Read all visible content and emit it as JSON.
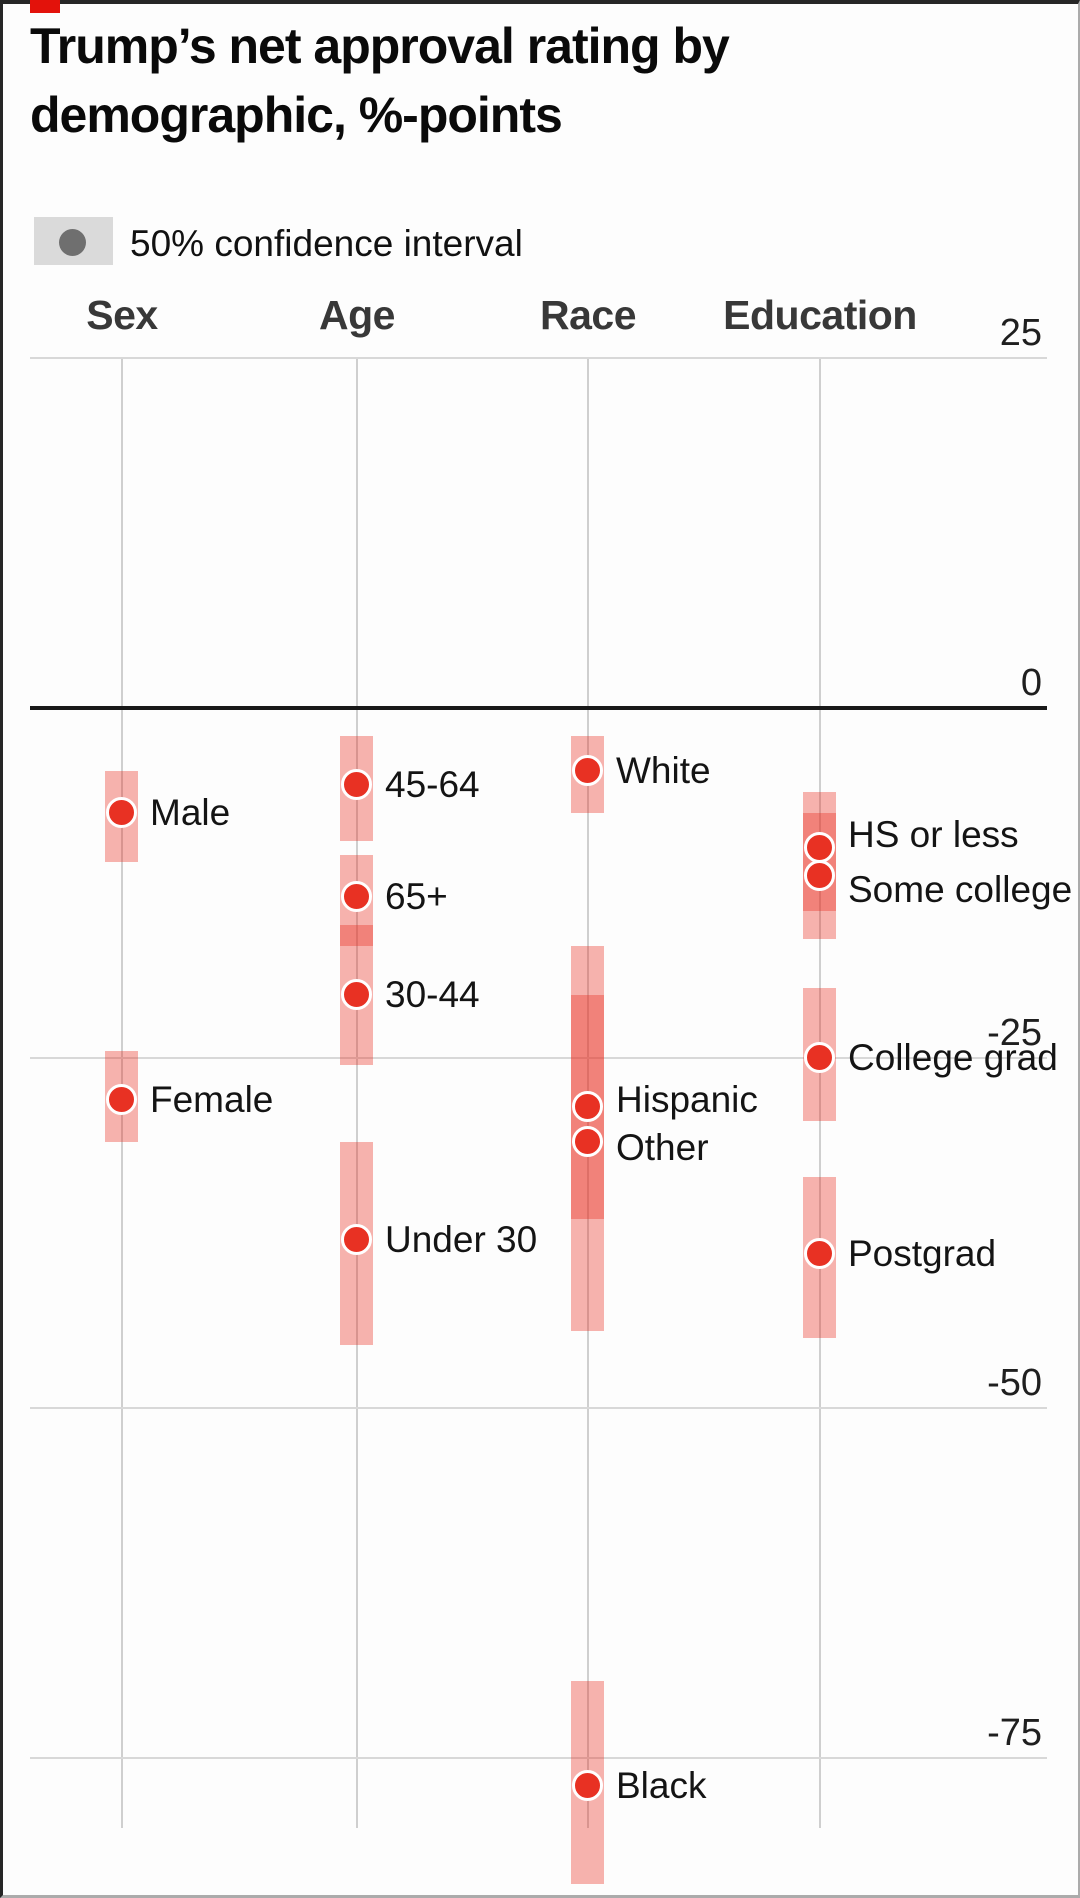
{
  "page": {
    "background": "#fdfdfd"
  },
  "branding": {
    "red_tab_color": "#e3120b"
  },
  "title": {
    "line1": "Trump’s net approval rating by",
    "line2": "demographic, %-points"
  },
  "legend": {
    "label": "50% confidence interval"
  },
  "colors": {
    "dot_red": "#e83123",
    "ci_fill": "rgba(232,49,35,0.37)",
    "legend_chip": "#dadada",
    "legend_dot": "#6f6f6f",
    "zero_line": "#191919",
    "gridline": "#d8d8d8",
    "column_gridline": "#cfcfcf"
  },
  "chart_data": {
    "type": "scatter",
    "title": "Trump’s net approval rating by demographic, %-points",
    "unit": "%-points",
    "legend": "50% confidence interval",
    "ylim": [
      -86,
      28
    ],
    "grid": "horizontal gridlines at 25/0/-25/-50/-75; one vertical gridline per category column",
    "legend_position": "top-left",
    "y_ticks": [
      {
        "label": "25",
        "value": 25
      },
      {
        "label": "0",
        "value": 0
      },
      {
        "label": "-25",
        "value": -25
      },
      {
        "label": "-50",
        "value": -50
      },
      {
        "label": "-75",
        "value": -75
      }
    ],
    "groups": [
      {
        "name": "Sex",
        "items": [
          {
            "label": "Male",
            "value": -7.5,
            "ci": {
              "upper": -4.5,
              "lower": -11
            },
            "label_dy": 0
          },
          {
            "label": "Female",
            "value": -28,
            "ci": {
              "upper": -24.5,
              "lower": -31
            },
            "label_dy": 0
          }
        ]
      },
      {
        "name": "Age",
        "items": [
          {
            "label": "45-64",
            "value": -5.5,
            "ci": {
              "upper": -2,
              "lower": -9.5
            },
            "label_dy": 0
          },
          {
            "label": "65+",
            "value": -13.5,
            "ci": {
              "upper": -10.5,
              "lower": -17
            },
            "label_dy": 0
          },
          {
            "label": "30-44",
            "value": -20.5,
            "ci": {
              "upper": -15.5,
              "lower": -25.5
            },
            "label_dy": 0
          },
          {
            "label": "Under 30",
            "value": -38,
            "ci": {
              "upper": -31,
              "lower": -45.5
            },
            "label_dy": 0
          }
        ]
      },
      {
        "name": "Race",
        "items": [
          {
            "label": "White",
            "value": -4.5,
            "ci": {
              "upper": -2,
              "lower": -7.5
            },
            "label_dy": 0
          },
          {
            "label": "Hispanic",
            "value": -28.5,
            "ci": {
              "upper": -17,
              "lower": -36.5
            },
            "label_dy": -7
          },
          {
            "label": "Other",
            "value": -31,
            "ci": {
              "upper": -20.5,
              "lower": -44.5
            },
            "label_dy": 6
          },
          {
            "label": "Black",
            "value": -77,
            "ci": {
              "upper": -69.5,
              "lower": -84
            },
            "label_dy": 0
          }
        ]
      },
      {
        "name": "Education",
        "items": [
          {
            "label": "HS or less",
            "value": -10,
            "ci": {
              "upper": -6,
              "lower": -14.5
            },
            "label_dy": -13
          },
          {
            "label": "Some college",
            "value": -12,
            "ci": {
              "upper": -7.5,
              "lower": -16.5
            },
            "label_dy": 14
          },
          {
            "label": "College grad",
            "value": -25,
            "ci": {
              "upper": -20,
              "lower": -29.5
            },
            "label_dy": 0
          },
          {
            "label": "Postgrad",
            "value": -39,
            "ci": {
              "upper": -33.5,
              "lower": -45
            },
            "label_dy": 0
          }
        ]
      }
    ]
  }
}
